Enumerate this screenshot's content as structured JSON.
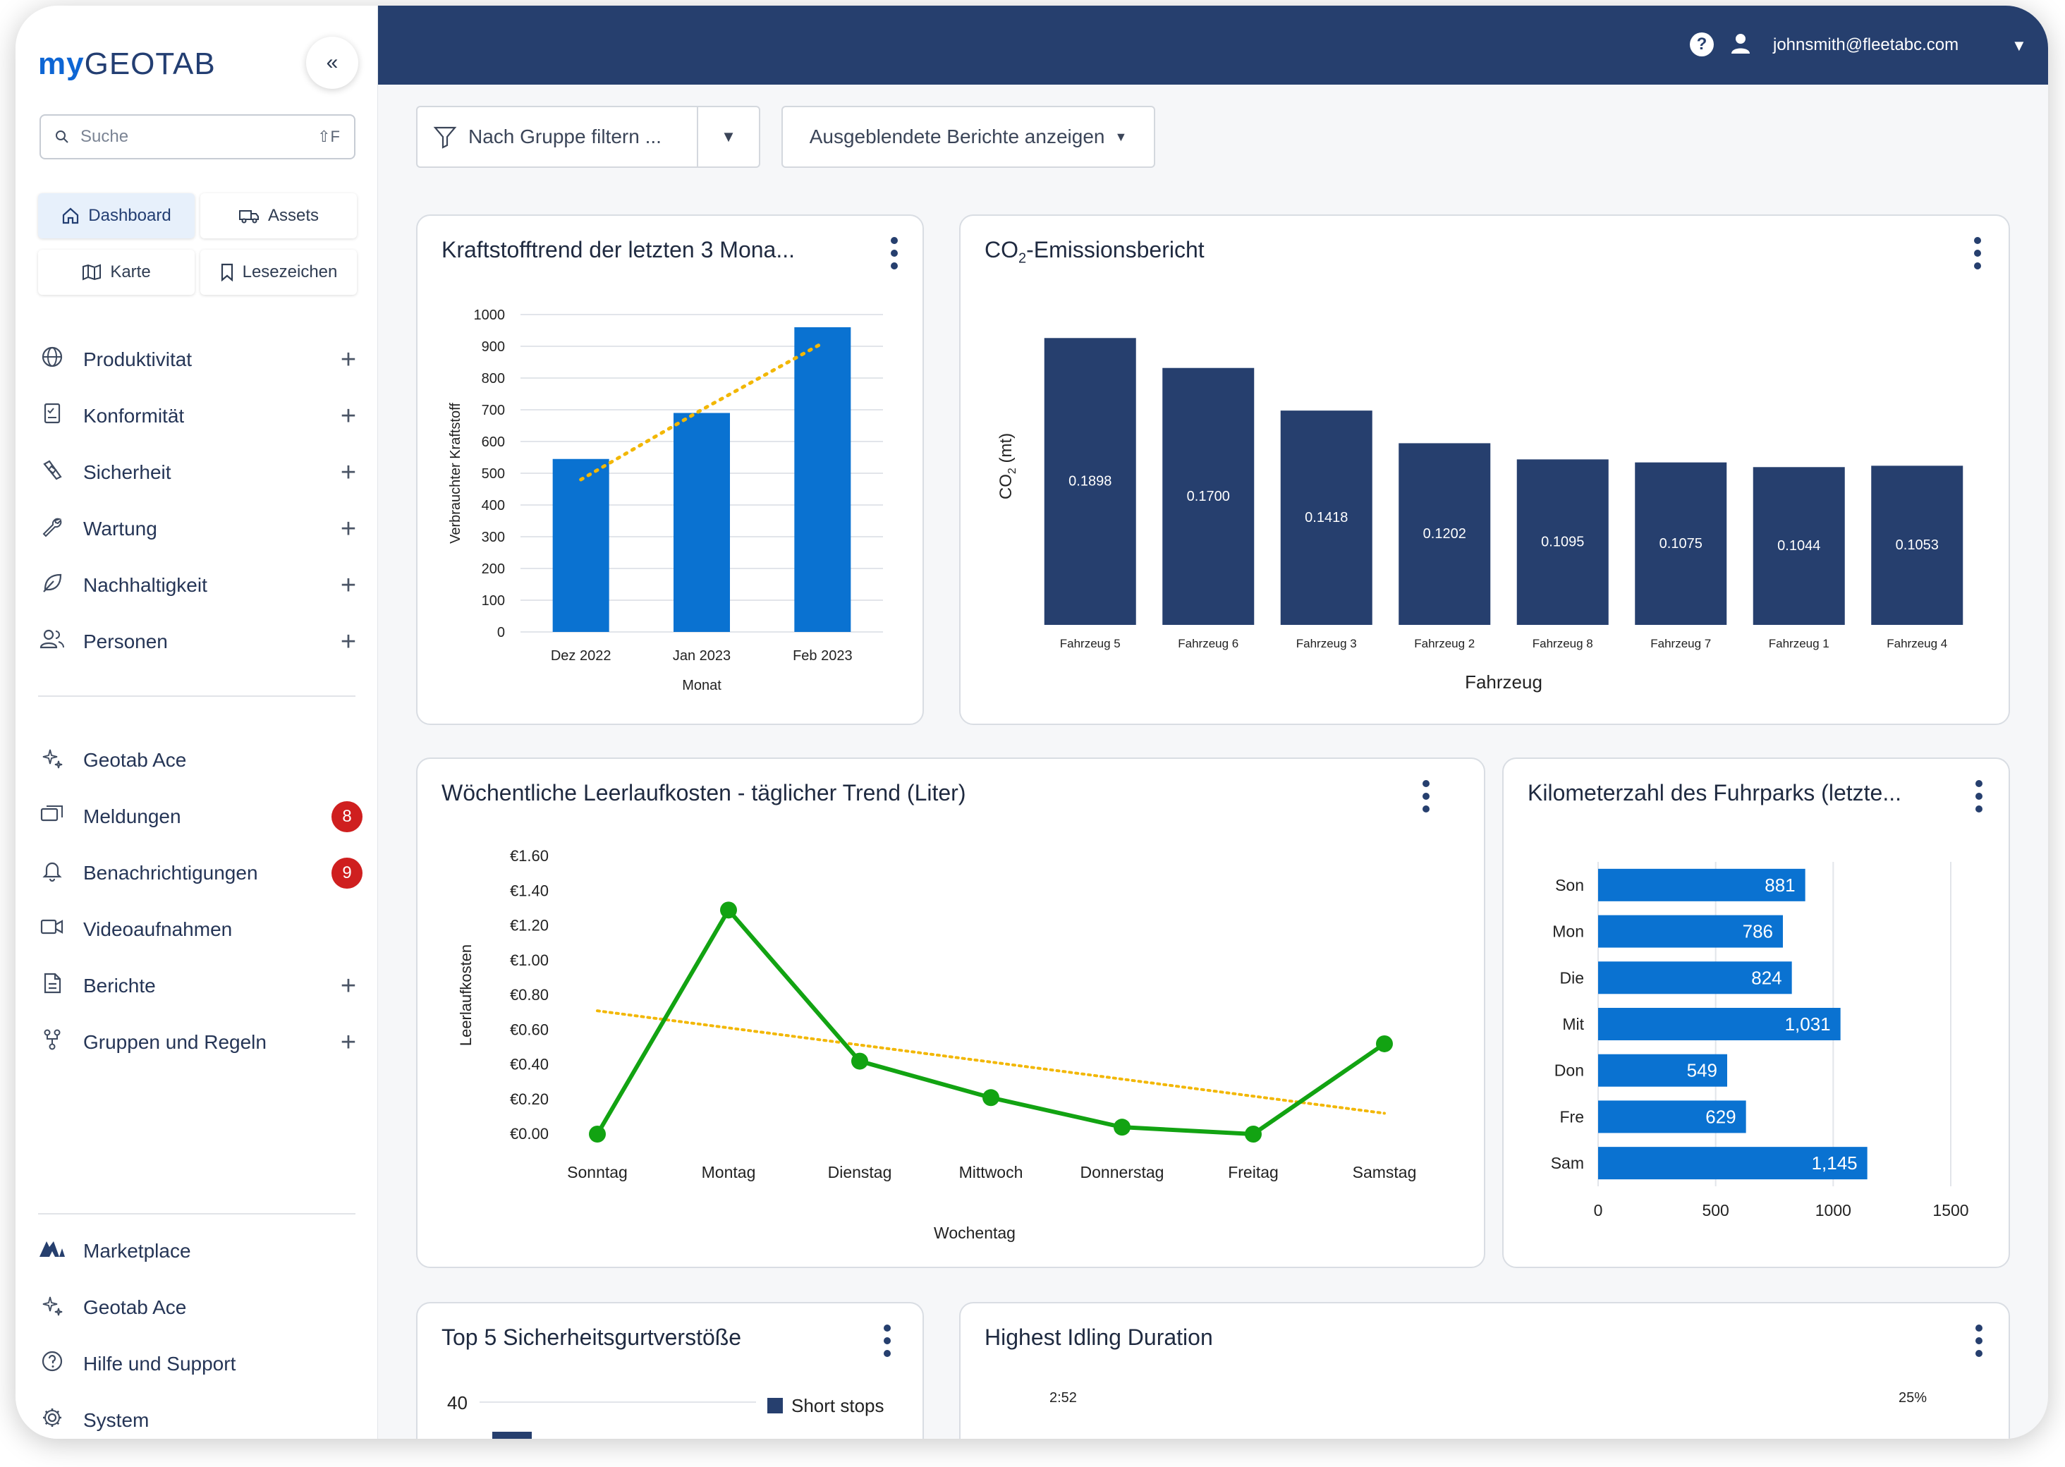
{
  "app": {
    "logo_my": "my",
    "logo_geotab": "GEOTAB",
    "collapse_icon": "chevron-double-left-icon"
  },
  "sidebar": {
    "search_placeholder": "Suche",
    "search_shortcut": "⇧F",
    "quick": [
      {
        "label": "Dashboard",
        "icon": "home-icon",
        "active": true
      },
      {
        "label": "Assets",
        "icon": "truck-icon"
      },
      {
        "label": "Karte",
        "icon": "map-icon"
      },
      {
        "label": "Lesezeichen",
        "icon": "bookmark-icon"
      }
    ],
    "nav": [
      {
        "label": "Produktivitat",
        "icon": "globe-icon",
        "plus": true
      },
      {
        "label": "Konformität",
        "icon": "checklist-icon",
        "plus": true
      },
      {
        "label": "Sicherheit",
        "icon": "seatbelt-icon",
        "plus": true
      },
      {
        "label": "Wartung",
        "icon": "wrench-icon",
        "plus": true
      },
      {
        "label": "Nachhaltigkeit",
        "icon": "leaf-icon",
        "plus": true
      },
      {
        "label": "Personen",
        "icon": "people-icon",
        "plus": true
      }
    ],
    "nav2": [
      {
        "label": "Geotab Ace",
        "icon": "sparkle-icon"
      },
      {
        "label": "Meldungen",
        "icon": "messages-icon",
        "badge": "8"
      },
      {
        "label": "Benachrichtigungen",
        "icon": "bell-icon",
        "badge": "9"
      },
      {
        "label": "Videoaufnahmen",
        "icon": "video-icon"
      },
      {
        "label": "Berichte",
        "icon": "report-icon",
        "plus": true
      },
      {
        "label": "Gruppen und Regeln",
        "icon": "groups-icon",
        "plus": true
      }
    ],
    "footer": [
      {
        "label": "Marketplace",
        "icon": "marketplace-icon"
      },
      {
        "label": "Geotab Ace",
        "icon": "sparkle-icon"
      },
      {
        "label": "Hilfe und Support",
        "icon": "help-circle-icon"
      },
      {
        "label": "System",
        "icon": "gear-icon"
      }
    ]
  },
  "header": {
    "user_email": "johnsmith@fleetabc.com",
    "help_label": "?"
  },
  "toolbar": {
    "filter_label": "Nach Gruppe filtern ...",
    "hidden_reports_label": "Ausgeblendete Berichte anzeigen"
  },
  "cards": {
    "fuel": {
      "title": "Kraftstofftrend der letzten 3 Mona..."
    },
    "co2": {
      "title_prefix": "CO",
      "title_sub": "2",
      "title_suffix": "-Emissionsbericht"
    },
    "idle": {
      "title": "Wöchentliche Leerlaufkosten - täglicher Trend (Liter)"
    },
    "km": {
      "title": "Kilometerzahl des Fuhrparks (letzte..."
    },
    "seatbelt": {
      "title": "Top 5 Sicherheitsgurtverstöße"
    },
    "idling": {
      "title": "Highest Idling Duration"
    }
  },
  "chart_data": [
    {
      "id": "fuel",
      "type": "bar",
      "categories": [
        "Dez 2022",
        "Jan 2023",
        "Feb 2023"
      ],
      "values": [
        545,
        690,
        960
      ],
      "trendline": [
        480,
        700,
        910
      ],
      "xlabel": "Monat",
      "ylabel": "Verbrauchter Kraftstoff",
      "ylim": [
        0,
        1000
      ],
      "yticks": [
        "0",
        "100",
        "200",
        "300",
        "400",
        "500",
        "600",
        "700",
        "800",
        "900",
        "1000"
      ],
      "colors": {
        "bar": "#0a72d1",
        "trend": "#f2b705"
      },
      "grid": true
    },
    {
      "id": "co2",
      "type": "bar",
      "categories": [
        "Fahrzeug 5",
        "Fahrzeug 6",
        "Fahrzeug 3",
        "Fahrzeug 2",
        "Fahrzeug 8",
        "Fahrzeug 7",
        "Fahrzeug 1",
        "Fahrzeug 4"
      ],
      "values": [
        0.1898,
        0.17,
        0.1418,
        0.1202,
        0.1095,
        0.1075,
        0.1044,
        0.1053
      ],
      "labels": [
        "0.1898",
        "0.1700",
        "0.1418",
        "0.1202",
        "0.1095",
        "0.1075",
        "0.1044",
        "0.1053"
      ],
      "xlabel": "Fahrzeug",
      "ylabel_prefix": "CO",
      "ylabel_sub": "2",
      "ylabel_suffix": " (mt)",
      "colors": {
        "bar": "#263f6e"
      }
    },
    {
      "id": "idle",
      "type": "line",
      "categories": [
        "Sonntag",
        "Montag",
        "Dienstag",
        "Mittwoch",
        "Donnerstag",
        "Freitag",
        "Samstag"
      ],
      "values": [
        0.0,
        1.29,
        0.42,
        0.21,
        0.04,
        0.0,
        0.52
      ],
      "trendline": [
        0.71,
        0.12
      ],
      "xlabel": "Wochentag",
      "ylabel": "Leerlaufkosten",
      "ylim": [
        0,
        1.6
      ],
      "yticks": [
        "€0.00",
        "€0.20",
        "€0.40",
        "€0.60",
        "€0.80",
        "€1.00",
        "€1.20",
        "€1.40",
        "€1.60"
      ],
      "colors": {
        "line": "#12a312",
        "trend": "#f2b705"
      }
    },
    {
      "id": "km",
      "type": "bar",
      "orientation": "horizontal",
      "categories": [
        "Son",
        "Mon",
        "Die",
        "Mit",
        "Don",
        "Fre",
        "Sam"
      ],
      "values": [
        881,
        786,
        824,
        1031,
        549,
        629,
        1145
      ],
      "labels": [
        "881",
        "786",
        "824",
        "1,031",
        "549",
        "629",
        "1,145"
      ],
      "xlim": [
        0,
        1500
      ],
      "xticks": [
        "0",
        "500",
        "1000",
        "1500"
      ],
      "colors": {
        "bar": "#0a72d1"
      },
      "grid": true
    },
    {
      "id": "seatbelt",
      "type": "bar",
      "ytick_visible": "40",
      "legend": [
        "Short stops"
      ],
      "colors": {
        "bar": "#263f6e"
      }
    },
    {
      "id": "idling",
      "type": "bar",
      "visible_labels": [
        "2:52",
        "25%"
      ]
    }
  ]
}
